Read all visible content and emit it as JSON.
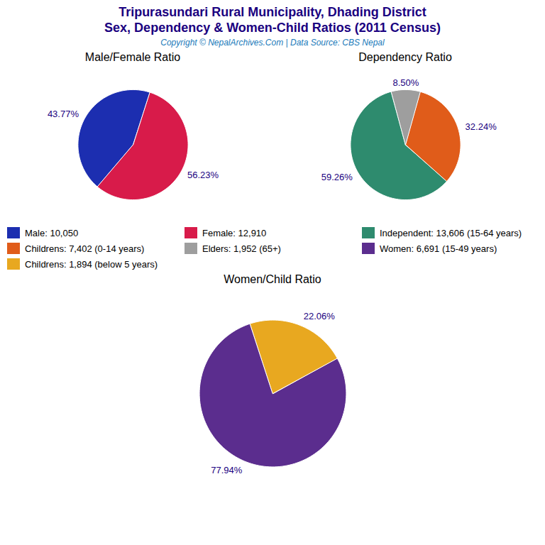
{
  "title": "Tripurasundari Rural Municipality, Dhading District",
  "subtitle": "Sex, Dependency & Women-Child Ratios (2011 Census)",
  "caption": "Copyright © NepalArchives.Com | Data Source: CBS Nepal",
  "chart_data": [
    {
      "type": "pie",
      "title": "Male/Female Ratio",
      "categories": [
        "Male: 10,050",
        "Female: 12,910"
      ],
      "values": [
        43.77,
        56.23
      ],
      "value_labels": [
        "43.77%",
        "56.23%"
      ],
      "colors": [
        "#1c2eb0",
        "#d81b4a"
      ],
      "data_labels": true
    },
    {
      "type": "pie",
      "title": "Dependency Ratio",
      "categories": [
        "Independent: 13,606 (15-64 years)",
        "Childrens: 7,402 (0-14 years)",
        "Elders: 1,952 (65+)"
      ],
      "values": [
        59.26,
        32.24,
        8.5
      ],
      "value_labels": [
        "59.26%",
        "32.24%",
        "8.50%"
      ],
      "colors": [
        "#2e8b6e",
        "#e05c1a",
        "#9e9e9e"
      ],
      "data_labels": true
    },
    {
      "type": "pie",
      "title": "Women/Child Ratio",
      "categories": [
        "Women: 6,691 (15-49 years)",
        "Childrens: 1,894 (below 5 years)"
      ],
      "values": [
        77.94,
        22.06
      ],
      "value_labels": [
        "77.94%",
        "22.06%"
      ],
      "colors": [
        "#5b2d8e",
        "#e8a820"
      ],
      "data_labels": true
    }
  ]
}
